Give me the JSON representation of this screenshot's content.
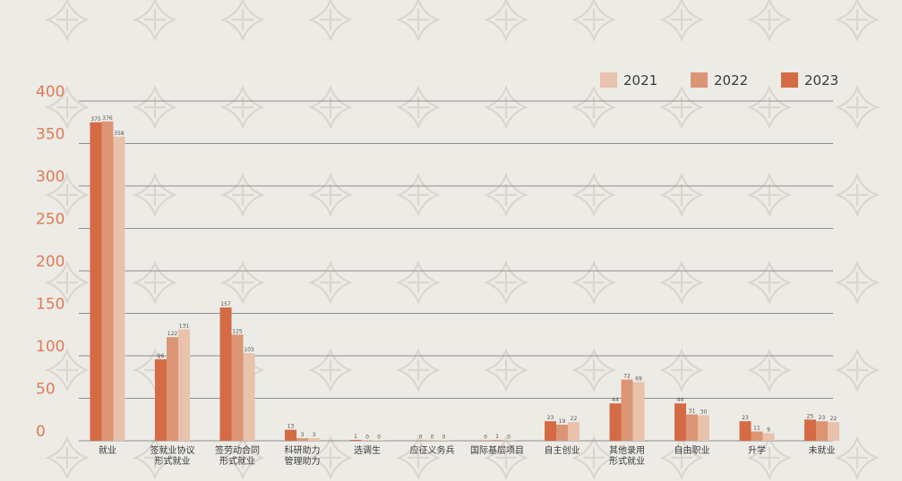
{
  "chart_data": {
    "type": "bar",
    "categories": [
      [
        "就业"
      ],
      [
        "签就业协议",
        "形式就业"
      ],
      [
        "签劳动合同",
        "形式就业"
      ],
      [
        "科研助力",
        "管理助力"
      ],
      [
        "选调生"
      ],
      [
        "应征义务兵"
      ],
      [
        "国际基层项目"
      ],
      [
        "自主创业"
      ],
      [
        "其他录用",
        "形式就业"
      ],
      [
        "自由职业"
      ],
      [
        "升学"
      ],
      [
        "未就业"
      ]
    ],
    "series": [
      {
        "name": "2023",
        "color": "#d56b45",
        "values": [
          375,
          96,
          157,
          13,
          1,
          0,
          0,
          23,
          44,
          44,
          23,
          25
        ]
      },
      {
        "name": "2022",
        "color": "#dc9574",
        "values": [
          376,
          122,
          125,
          3,
          0,
          0,
          1,
          19,
          72,
          31,
          11,
          23
        ]
      },
      {
        "name": "2021",
        "color": "#e8c2ab",
        "values": [
          358,
          131,
          103,
          3,
          0,
          0,
          0,
          22,
          69,
          30,
          9,
          22
        ]
      }
    ],
    "legend_order": [
      "2021",
      "2022",
      "2023"
    ],
    "ylim": [
      0,
      400
    ],
    "yticks": [
      0,
      50,
      100,
      150,
      200,
      250,
      300,
      350,
      400
    ],
    "grid": true,
    "legend_position": "top-right",
    "title": "",
    "xlabel": "",
    "ylabel": ""
  }
}
